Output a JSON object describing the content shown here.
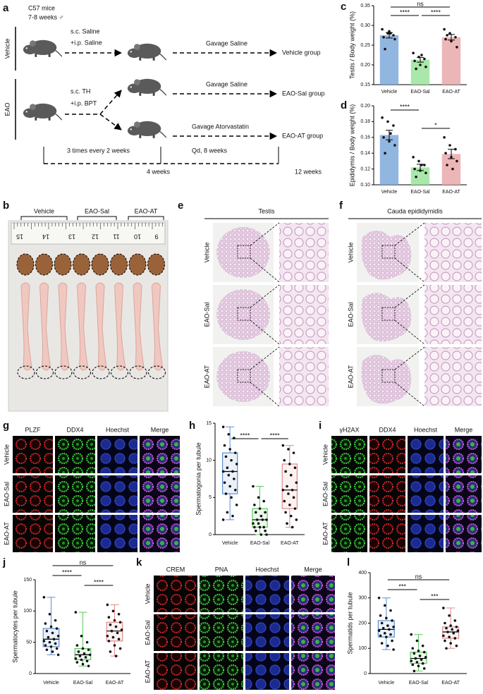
{
  "panel_labels": [
    "a",
    "b",
    "c",
    "d",
    "e",
    "f",
    "g",
    "h",
    "i",
    "j",
    "k",
    "l"
  ],
  "a": {
    "strain": "C57 mice",
    "age": "7-8 weeks ♂",
    "groups": [
      "Vehicle",
      "EAO"
    ],
    "vehicle_injection": [
      "s.c. Saline",
      "+i.p. Saline"
    ],
    "eao_injection": [
      "s.c. TH",
      "+i.p. BPT"
    ],
    "treatments": [
      "Gavage Saline",
      "Gavage Saline",
      "Gavage Atorvastatin"
    ],
    "outcomes": [
      "Vehicle group",
      "EAO-Sal group",
      "EAO-AT group"
    ],
    "phases": [
      "3 times every 2 weeks",
      "Qd, 8 weeks"
    ],
    "timepoints": [
      "4 weeks",
      "12 weeks"
    ]
  },
  "b": {
    "groups": [
      "Vehicle",
      "EAO-Sal",
      "EAO-AT"
    ],
    "ruler": [
      15,
      14,
      13,
      12,
      11,
      10,
      9
    ]
  },
  "e": {
    "title": "Testis",
    "groups": [
      "Vehicle",
      "EAO-Sal",
      "EAO-AT"
    ]
  },
  "f": {
    "title": "Cauda epididymidis",
    "groups": [
      "Vehicle",
      "EAO-Sal",
      "EAO-AT"
    ]
  },
  "g": {
    "stains": [
      "PLZF",
      "DDX4",
      "Hoechst",
      "Merge"
    ],
    "colors": [
      "#d02828",
      "#22a822",
      "#2448d8",
      "#000000"
    ],
    "groups": [
      "Vehicle",
      "EAO-Sal",
      "EAO-AT"
    ]
  },
  "i": {
    "stains": [
      "γH2AX",
      "DDX4",
      "Hoechst",
      "Merge"
    ],
    "colors": [
      "#22a822",
      "#d02828",
      "#2448d8",
      "#000000"
    ],
    "groups": [
      "Vehicle",
      "EAO-Sal",
      "EAO-AT"
    ]
  },
  "k": {
    "stains": [
      "CREM",
      "PNA",
      "Hoechst",
      "Merge"
    ],
    "colors": [
      "#d02828",
      "#22a822",
      "#2448d8",
      "#000000"
    ],
    "groups": [
      "Vehicle",
      "EAO-Sal",
      "EAO-AT"
    ]
  },
  "chart_data": [
    {
      "type": "bar",
      "y_label": "Testis / Body weight (%)",
      "categories": [
        "Vehicle",
        "EAO-Sal",
        "EAO-AT"
      ],
      "values": [
        0.275,
        0.213,
        0.27
      ],
      "errors": [
        0.007,
        0.006,
        0.007
      ],
      "points": [
        [
          0.29,
          0.28,
          0.275,
          0.27,
          0.285,
          0.265,
          0.24,
          0.28
        ],
        [
          0.23,
          0.22,
          0.215,
          0.21,
          0.2,
          0.195,
          0.19,
          0.225
        ],
        [
          0.29,
          0.28,
          0.27,
          0.265,
          0.26,
          0.245,
          0.275
        ]
      ],
      "colors": [
        "#7ea9da",
        "#9be39b",
        "#eaa9a9"
      ],
      "ylim": [
        0.15,
        0.35
      ],
      "yticks": [
        0.15,
        {
          "value": 0.2,
          "label": "0.20"
        },
        0.25,
        {
          "value": 0.3,
          "label": "0.30"
        },
        0.35
      ],
      "annotations": [
        "ns",
        "****",
        "****"
      ]
    },
    {
      "type": "bar",
      "y_label": "Epididymis / Body weight (%)",
      "categories": [
        "Vehicle",
        "EAO-Sal",
        "EAO-AT"
      ],
      "values": [
        0.163,
        0.122,
        0.139
      ],
      "errors": [
        0.006,
        0.004,
        0.006
      ],
      "points": [
        [
          0.185,
          0.18,
          0.175,
          0.16,
          0.155,
          0.15,
          0.14,
          0.165
        ],
        [
          0.135,
          0.13,
          0.125,
          0.12,
          0.118,
          0.115,
          0.11,
          0.125
        ],
        [
          0.16,
          0.15,
          0.145,
          0.14,
          0.135,
          0.13,
          0.125,
          0.12
        ]
      ],
      "colors": [
        "#7ea9da",
        "#9be39b",
        "#eaa9a9"
      ],
      "ylim": [
        0.1,
        0.2
      ],
      "yticks": [
        {
          "value": 0.1,
          "label": "0.10"
        },
        0.12,
        0.14,
        0.16,
        0.18,
        {
          "value": 0.2,
          "label": "0.20"
        }
      ],
      "annotations": [
        "****",
        "*"
      ]
    },
    {
      "type": "box",
      "y_label": "Spermatogonia per tubule",
      "categories": [
        "Vehicle",
        "EAO-Sal",
        "EAO-AT"
      ],
      "box": [
        [
          2,
          5.5,
          8.5,
          11,
          14.5
        ],
        [
          0,
          1,
          2,
          3.5,
          6.5
        ],
        [
          1,
          3.5,
          6,
          9.5,
          12
        ]
      ],
      "points": [
        [
          14.5,
          13.5,
          13,
          12,
          11.5,
          11,
          10.5,
          10,
          9.5,
          9,
          8.5,
          8.5,
          8,
          7.5,
          7,
          6.5,
          6,
          5.5,
          5,
          4,
          3,
          2.5,
          2
        ],
        [
          6.5,
          5,
          4.5,
          4,
          3.5,
          3,
          3,
          2.5,
          2,
          2,
          2,
          1.5,
          1.5,
          1,
          1,
          1,
          0.5,
          0.5,
          0,
          0
        ],
        [
          12,
          11.5,
          11,
          10,
          9.5,
          9,
          8.5,
          8,
          7,
          6.5,
          6,
          6,
          5.5,
          5,
          4.5,
          4,
          3.5,
          3,
          2.5,
          2,
          1.5,
          1
        ]
      ],
      "colors": [
        "#5b8fd0",
        "#5cc85c",
        "#e08a8a"
      ],
      "ylim": [
        0,
        15
      ],
      "yticks": [
        0,
        5,
        10,
        15
      ],
      "annotations": [
        "****",
        "****"
      ]
    },
    {
      "type": "box",
      "y_label": "Spermatocytes per tubule",
      "categories": [
        "Vehicle",
        "EAO-Sal",
        "EAO-AT"
      ],
      "box": [
        [
          30,
          43,
          55,
          72,
          122
        ],
        [
          12,
          22,
          30,
          40,
          98
        ],
        [
          28,
          52,
          68,
          82,
          110
        ]
      ],
      "points": [
        [
          122,
          95,
          85,
          80,
          75,
          72,
          68,
          65,
          60,
          58,
          55,
          52,
          50,
          48,
          45,
          43,
          40,
          38,
          35,
          30
        ],
        [
          98,
          60,
          50,
          45,
          40,
          38,
          35,
          32,
          30,
          28,
          26,
          24,
          22,
          20,
          18,
          15,
          12
        ],
        [
          110,
          100,
          95,
          90,
          85,
          82,
          78,
          75,
          70,
          68,
          65,
          60,
          58,
          55,
          52,
          45,
          40,
          35,
          28
        ]
      ],
      "colors": [
        "#5b8fd0",
        "#5cc85c",
        "#e08a8a"
      ],
      "ylim": [
        0,
        150
      ],
      "yticks": [
        0,
        50,
        100,
        150
      ],
      "annotations": [
        "ns",
        "****",
        "****"
      ]
    },
    {
      "type": "box",
      "y_label": "Spermatids per tubule",
      "categories": [
        "Vehicle",
        "EAO-Sal",
        "EAO-AT"
      ],
      "box": [
        [
          95,
          145,
          175,
          210,
          300
        ],
        [
          10,
          40,
          60,
          85,
          155
        ],
        [
          100,
          140,
          165,
          185,
          260
        ]
      ],
      "points": [
        [
          300,
          270,
          250,
          230,
          220,
          210,
          200,
          190,
          185,
          180,
          175,
          170,
          160,
          155,
          150,
          145,
          130,
          120,
          110,
          95
        ],
        [
          155,
          130,
          110,
          100,
          90,
          85,
          80,
          70,
          65,
          60,
          55,
          50,
          45,
          40,
          35,
          30,
          20,
          10
        ],
        [
          260,
          230,
          210,
          200,
          190,
          185,
          180,
          175,
          170,
          165,
          160,
          150,
          145,
          140,
          130,
          120,
          110,
          100
        ]
      ],
      "colors": [
        "#5b8fd0",
        "#5cc85c",
        "#e08a8a"
      ],
      "ylim": [
        0,
        400
      ],
      "yticks": [
        0,
        100,
        200,
        300,
        400
      ],
      "annotations": [
        "ns",
        "***",
        "***"
      ]
    }
  ]
}
